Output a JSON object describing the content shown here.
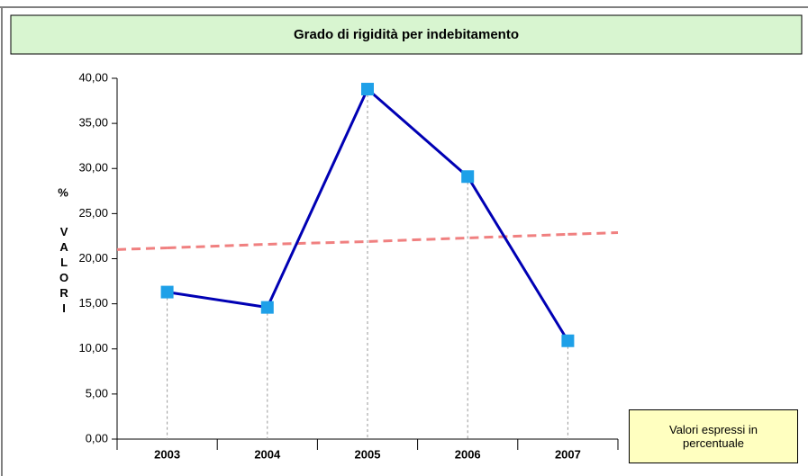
{
  "chart_data": {
    "type": "line",
    "title": "Grado di rigidità per indebitamento",
    "ylabel_unit": "%",
    "ylabel": "VALORI",
    "categories": [
      "2003",
      "2004",
      "2005",
      "2006",
      "2007"
    ],
    "series": [
      {
        "color": "#0000b4",
        "marker_color": "#1ea0e8",
        "values": [
          16.3,
          14.6,
          38.8,
          29.1,
          10.9
        ]
      }
    ],
    "trendline": {
      "color": "#f08080",
      "values": [
        21.2,
        21.6,
        21.9,
        22.3,
        22.7
      ]
    },
    "ylim": [
      0,
      40
    ],
    "yticks": [
      {
        "value": 0,
        "label": "0,00"
      },
      {
        "value": 5,
        "label": "5,00"
      },
      {
        "value": 10,
        "label": "10,00"
      },
      {
        "value": 15,
        "label": "15,00"
      },
      {
        "value": 20,
        "label": "20,00"
      },
      {
        "value": 25,
        "label": "25,00"
      },
      {
        "value": 30,
        "label": "30,00"
      },
      {
        "value": 35,
        "label": "35,00"
      },
      {
        "value": 40,
        "label": "40,00"
      }
    ],
    "note": "Valori espressi in percentuale"
  }
}
